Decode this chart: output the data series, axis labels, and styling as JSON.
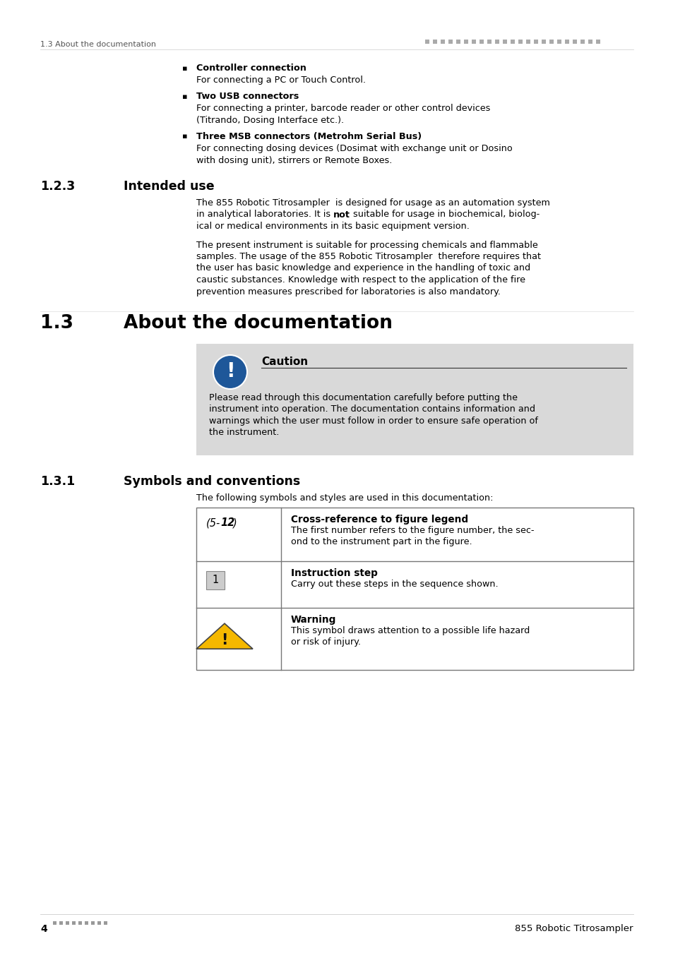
{
  "bg_color": "#ffffff",
  "header_section_label": "1.3 About the documentation",
  "bullet_items": [
    {
      "bold": "Controller connection",
      "normal_lines": [
        "For connecting a PC or Touch Control."
      ]
    },
    {
      "bold": "Two USB connectors",
      "normal_lines": [
        "For connecting a printer, barcode reader or other control devices",
        "(Titrando, Dosing Interface etc.)."
      ]
    },
    {
      "bold": "Three MSB connectors (Metrohm Serial Bus)",
      "normal_lines": [
        "For connecting dosing devices (Dosimat with exchange unit or Dosino",
        "with dosing unit), stirrers or Remote Boxes."
      ]
    }
  ],
  "section_123_num": "1.2.3",
  "section_123_title": "Intended use",
  "para1_lines_before_bold": "The 855 Robotic Titrosampler  is designed for usage as an automation system",
  "para1_line2_pre": "in analytical laboratories. It is ",
  "para1_line2_bold": "not",
  "para1_line2_post": " suitable for usage in biochemical, biolog-",
  "para1_line3": "ical or medical environments in its basic equipment version.",
  "para2_lines": [
    "The present instrument is suitable for processing chemicals and flammable",
    "samples. The usage of the 855 Robotic Titrosampler  therefore requires that",
    "the user has basic knowledge and experience in the handling of toxic and",
    "caustic substances. Knowledge with respect to the application of the fire",
    "prevention measures prescribed for laboratories is also mandatory."
  ],
  "section_13_num": "1.3",
  "section_13_title": "About the documentation",
  "caution_box_bg": "#d9d9d9",
  "caution_title": "Caution",
  "caution_body_lines": [
    "Please read through this documentation carefully before putting the",
    "instrument into operation. The documentation contains information and",
    "warnings which the user must follow in order to ensure safe operation of",
    "the instrument."
  ],
  "section_131_num": "1.3.1",
  "section_131_title": "Symbols and conventions",
  "symbols_intro": "The following symbols and styles are used in this documentation:",
  "table_rows": [
    {
      "symbol_type": "cross_ref",
      "title": "Cross-reference to figure legend",
      "desc_lines": [
        "The first number refers to the figure number, the sec-",
        "ond to the instrument part in the figure."
      ]
    },
    {
      "symbol_type": "number_box",
      "title": "Instruction step",
      "desc_lines": [
        "Carry out these steps in the sequence shown."
      ]
    },
    {
      "symbol_type": "warning_triangle",
      "title": "Warning",
      "desc_lines": [
        "This symbol draws attention to a possible life hazard",
        "or risk of injury."
      ]
    }
  ],
  "footer_page": "4",
  "footer_title": "855 Robotic Titrosampler"
}
